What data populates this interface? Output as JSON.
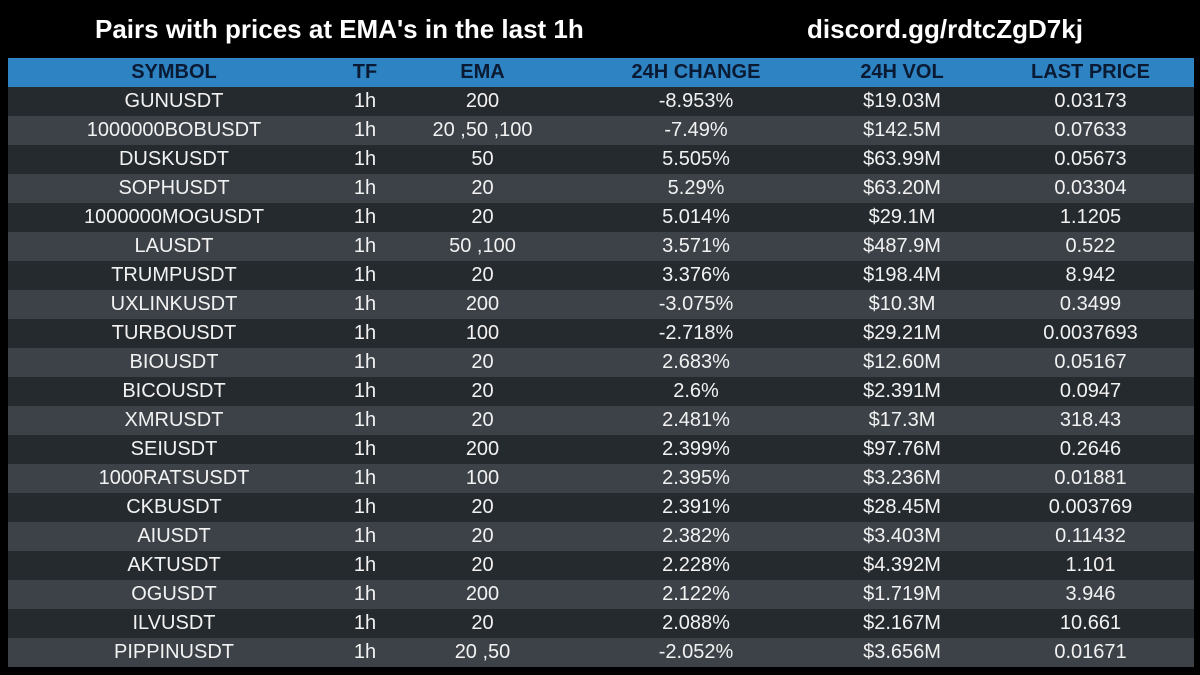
{
  "header": {
    "title": "Pairs with prices at EMA's in the last 1h",
    "discord": "discord.gg/rdtcZgD7kj"
  },
  "table": {
    "columns": [
      "SYMBOL",
      "TF",
      "EMA",
      "24H CHANGE",
      "24H VOL",
      "LAST PRICE"
    ],
    "rows": [
      [
        "GUNUSDT",
        "1h",
        "200",
        "-8.953%",
        "$19.03M",
        "0.03173"
      ],
      [
        "1000000BOBUSDT",
        "1h",
        "20 ,50 ,100",
        "-7.49%",
        "$142.5M",
        "0.07633"
      ],
      [
        "DUSKUSDT",
        "1h",
        "50",
        "5.505%",
        "$63.99M",
        "0.05673"
      ],
      [
        "SOPHUSDT",
        "1h",
        "20",
        "5.29%",
        "$63.20M",
        "0.03304"
      ],
      [
        "1000000MOGUSDT",
        "1h",
        "20",
        "5.014%",
        "$29.1M",
        "1.1205"
      ],
      [
        "LAUSDT",
        "1h",
        "50 ,100",
        "3.571%",
        "$487.9M",
        "0.522"
      ],
      [
        "TRUMPUSDT",
        "1h",
        "20",
        "3.376%",
        "$198.4M",
        "8.942"
      ],
      [
        "UXLINKUSDT",
        "1h",
        "200",
        "-3.075%",
        "$10.3M",
        "0.3499"
      ],
      [
        "TURBOUSDT",
        "1h",
        "100",
        "-2.718%",
        "$29.21M",
        "0.0037693"
      ],
      [
        "BIOUSDT",
        "1h",
        "20",
        "2.683%",
        "$12.60M",
        "0.05167"
      ],
      [
        "BICOUSDT",
        "1h",
        "20",
        "2.6%",
        "$2.391M",
        "0.0947"
      ],
      [
        "XMRUSDT",
        "1h",
        "20",
        "2.481%",
        "$17.3M",
        "318.43"
      ],
      [
        "SEIUSDT",
        "1h",
        "200",
        "2.399%",
        "$97.76M",
        "0.2646"
      ],
      [
        "1000RATSUSDT",
        "1h",
        "100",
        "2.395%",
        "$3.236M",
        "0.01881"
      ],
      [
        "CKBUSDT",
        "1h",
        "20",
        "2.391%",
        "$28.45M",
        "0.003769"
      ],
      [
        "AIUSDT",
        "1h",
        "20",
        "2.382%",
        "$3.403M",
        "0.11432"
      ],
      [
        "AKTUSDT",
        "1h",
        "20",
        "2.228%",
        "$4.392M",
        "1.101"
      ],
      [
        "OGUSDT",
        "1h",
        "200",
        "2.122%",
        "$1.719M",
        "3.946"
      ],
      [
        "ILVUSDT",
        "1h",
        "20",
        "2.088%",
        "$2.167M",
        "10.661"
      ],
      [
        "PIPPINUSDT",
        "1h",
        "20 ,50",
        "-2.052%",
        "$3.656M",
        "0.01671"
      ]
    ]
  },
  "colors": {
    "background": "#000000",
    "header_row": "#2e83c3",
    "row_dark": "#252a2f",
    "row_light": "#3c4248",
    "text": "#f2f2f2"
  }
}
